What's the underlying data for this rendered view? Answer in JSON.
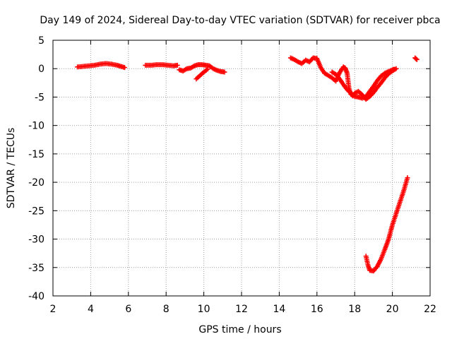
{
  "chart_data": {
    "type": "scatter",
    "title": "Day 149 of 2024, Sidereal Day-to-day VTEC variation (SDTVAR) for receiver pbca",
    "xlabel": "GPS time / hours",
    "ylabel": "SDTVAR / TECUs",
    "xlim": [
      2,
      22
    ],
    "ylim": [
      -40,
      5
    ],
    "x_ticks": [
      2,
      4,
      6,
      8,
      10,
      12,
      14,
      16,
      18,
      20,
      22
    ],
    "x_tick_labels": [
      "2",
      "4",
      "6",
      "8",
      "10",
      "12",
      "14",
      "16",
      "18",
      "20",
      "22"
    ],
    "y_ticks": [
      5,
      0,
      -5,
      -10,
      -15,
      -20,
      -25,
      -30,
      -35,
      -40
    ],
    "y_tick_labels": [
      "5",
      "0",
      "-5",
      "-10",
      "-15",
      "-20",
      "-25",
      "-30",
      "-35",
      "-40"
    ],
    "grid": true,
    "marker": "plus",
    "color": "#ff0000",
    "series": [
      {
        "name": "pbca",
        "segments": [
          [
            [
              3.3,
              0.3
            ],
            [
              3.6,
              0.4
            ],
            [
              3.9,
              0.5
            ],
            [
              4.2,
              0.6
            ],
            [
              4.5,
              0.8
            ],
            [
              4.8,
              0.9
            ],
            [
              5.1,
              0.8
            ],
            [
              5.4,
              0.6
            ],
            [
              5.6,
              0.4
            ],
            [
              5.8,
              0.2
            ]
          ],
          [
            [
              6.9,
              0.6
            ],
            [
              7.2,
              0.6
            ],
            [
              7.5,
              0.7
            ],
            [
              7.8,
              0.7
            ],
            [
              8.1,
              0.6
            ],
            [
              8.4,
              0.5
            ],
            [
              8.6,
              0.6
            ]
          ],
          [
            [
              8.7,
              -0.2
            ],
            [
              8.9,
              -0.4
            ],
            [
              9.1,
              0.0
            ],
            [
              9.3,
              0.1
            ],
            [
              9.5,
              0.5
            ],
            [
              9.7,
              0.7
            ],
            [
              9.9,
              0.7
            ],
            [
              10.1,
              0.6
            ],
            [
              10.3,
              0.5
            ],
            [
              10.5,
              0.0
            ],
            [
              10.7,
              -0.3
            ],
            [
              10.9,
              -0.5
            ],
            [
              11.1,
              -0.6
            ]
          ],
          [
            [
              9.6,
              -1.8
            ],
            [
              9.8,
              -1.2
            ],
            [
              10.0,
              -0.6
            ],
            [
              10.2,
              -0.1
            ]
          ],
          [
            [
              14.6,
              1.9
            ],
            [
              14.8,
              1.6
            ],
            [
              15.0,
              1.2
            ],
            [
              15.2,
              0.9
            ],
            [
              15.4,
              1.5
            ],
            [
              15.6,
              1.2
            ],
            [
              15.8,
              1.9
            ],
            [
              16.0,
              1.8
            ],
            [
              16.2,
              0.2
            ],
            [
              16.4,
              -0.8
            ],
            [
              16.6,
              -1.2
            ],
            [
              16.8,
              -1.6
            ],
            [
              17.0,
              -2.2
            ],
            [
              17.1,
              -1.4
            ],
            [
              17.2,
              -0.7
            ],
            [
              17.3,
              -0.2
            ],
            [
              17.4,
              0.3
            ],
            [
              17.5,
              0.1
            ],
            [
              17.6,
              -0.8
            ],
            [
              17.7,
              -3.5
            ],
            [
              17.8,
              -4.5
            ],
            [
              17.9,
              -4.8
            ],
            [
              18.0,
              -4.3
            ],
            [
              18.2,
              -4.0
            ],
            [
              18.4,
              -4.6
            ],
            [
              18.6,
              -5.4
            ],
            [
              18.8,
              -4.9
            ],
            [
              19.0,
              -4.2
            ],
            [
              19.2,
              -3.3
            ],
            [
              19.4,
              -2.5
            ],
            [
              19.6,
              -1.6
            ],
            [
              19.8,
              -0.9
            ],
            [
              20.0,
              -0.4
            ],
            [
              20.2,
              0.0
            ]
          ],
          [
            [
              16.8,
              -0.6
            ],
            [
              17.0,
              -1.0
            ],
            [
              17.2,
              -1.8
            ],
            [
              17.4,
              -2.8
            ],
            [
              17.6,
              -3.7
            ],
            [
              17.8,
              -4.3
            ],
            [
              18.0,
              -4.9
            ],
            [
              18.2,
              -5.0
            ],
            [
              18.4,
              -5.2
            ],
            [
              18.6,
              -4.9
            ],
            [
              18.8,
              -4.0
            ],
            [
              19.0,
              -3.1
            ],
            [
              19.2,
              -2.1
            ],
            [
              19.4,
              -1.3
            ],
            [
              19.6,
              -0.8
            ],
            [
              19.8,
              -0.5
            ],
            [
              20.0,
              -0.2
            ],
            [
              20.1,
              -0.1
            ]
          ],
          [
            [
              21.2,
              1.9
            ],
            [
              21.3,
              1.6
            ]
          ],
          [
            [
              18.6,
              -33.0
            ],
            [
              18.7,
              -34.5
            ],
            [
              18.8,
              -35.5
            ],
            [
              19.0,
              -35.6
            ],
            [
              19.2,
              -34.8
            ],
            [
              19.4,
              -33.5
            ],
            [
              19.6,
              -31.8
            ],
            [
              19.8,
              -30.0
            ],
            [
              20.0,
              -27.5
            ],
            [
              20.2,
              -25.5
            ],
            [
              20.4,
              -23.5
            ],
            [
              20.6,
              -21.5
            ],
            [
              20.8,
              -19.2
            ]
          ]
        ]
      }
    ]
  }
}
